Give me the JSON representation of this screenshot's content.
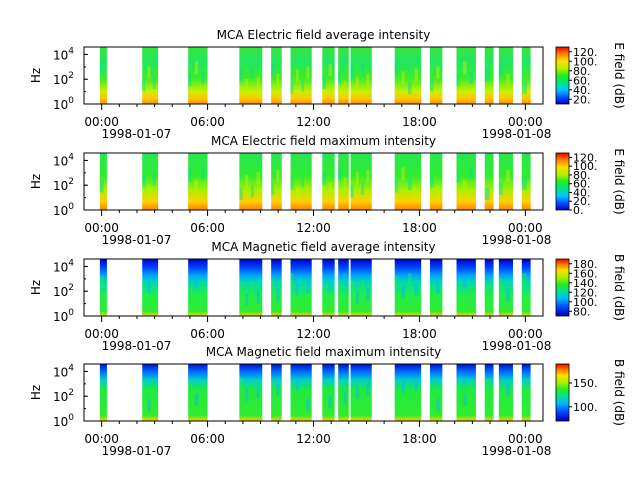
{
  "chart_data": [
    {
      "type": "heatmap",
      "title": "MCA  Electric field average intensity",
      "ylabel": "Hz",
      "colorbar_label": "E field (dB)",
      "colorbar_ticks": [
        "20.",
        "40.",
        "60.",
        "80.",
        "100.",
        "120."
      ],
      "colorbar_range": [
        10,
        130
      ],
      "y_ticks": [
        {
          "base": "10",
          "exp": "0"
        },
        {
          "base": "10",
          "exp": "2"
        },
        {
          "base": "10",
          "exp": "4"
        }
      ],
      "y_range_log10": [
        0,
        4.6
      ],
      "x_ticks": [
        "00:00",
        "06:00",
        "12:00",
        "18:00",
        "00:00"
      ],
      "x_dates": [
        "1998-01-07",
        "1998-01-08"
      ],
      "x_range_hours": [
        -1,
        25
      ],
      "palette": "spectral-low"
    },
    {
      "type": "heatmap",
      "title": "MCA  Electric field maximum intensity",
      "ylabel": "Hz",
      "colorbar_label": "E field (dB)",
      "colorbar_ticks": [
        "0.",
        "20.",
        "40.",
        "60.",
        "80.",
        "100.",
        "120."
      ],
      "colorbar_range": [
        0,
        130
      ],
      "y_ticks": [
        {
          "base": "10",
          "exp": "0"
        },
        {
          "base": "10",
          "exp": "2"
        },
        {
          "base": "10",
          "exp": "4"
        }
      ],
      "y_range_log10": [
        0,
        4.6
      ],
      "x_ticks": [
        "00:00",
        "06:00",
        "12:00",
        "18:00",
        "00:00"
      ],
      "x_dates": [
        "1998-01-07",
        "1998-01-08"
      ],
      "x_range_hours": [
        -1,
        25
      ],
      "palette": "spectral-low"
    },
    {
      "type": "heatmap",
      "title": "MCA  Magnetic field average intensity",
      "ylabel": "Hz",
      "colorbar_label": "B field (dB)",
      "colorbar_ticks": [
        "80.",
        "100.",
        "120.",
        "140.",
        "160.",
        "180."
      ],
      "colorbar_range": [
        70,
        190
      ],
      "y_ticks": [
        {
          "base": "10",
          "exp": "0"
        },
        {
          "base": "10",
          "exp": "2"
        },
        {
          "base": "10",
          "exp": "4"
        }
      ],
      "y_range_log10": [
        0,
        4.6
      ],
      "x_ticks": [
        "00:00",
        "06:00",
        "12:00",
        "18:00",
        "00:00"
      ],
      "x_dates": [
        "1998-01-07",
        "1998-01-08"
      ],
      "x_range_hours": [
        -1,
        25
      ],
      "palette": "magnetic"
    },
    {
      "type": "heatmap",
      "title": "MCA  Magnetic field maximum intensity",
      "ylabel": "Hz",
      "colorbar_label": "B field (dB)",
      "colorbar_ticks": [
        "100.",
        "150."
      ],
      "colorbar_range": [
        70,
        190
      ],
      "y_ticks": [
        {
          "base": "10",
          "exp": "0"
        },
        {
          "base": "10",
          "exp": "2"
        },
        {
          "base": "10",
          "exp": "4"
        }
      ],
      "y_range_log10": [
        0,
        4.6
      ],
      "x_ticks": [
        "00:00",
        "06:00",
        "12:00",
        "18:00",
        "00:00"
      ],
      "x_dates": [
        "1998-01-07",
        "1998-01-08"
      ],
      "x_range_hours": [
        -1,
        25
      ],
      "palette": "magnetic"
    }
  ],
  "data_segments_hours": [
    [
      -0.1,
      0.3
    ],
    [
      2.3,
      3.2
    ],
    [
      4.9,
      6.0
    ],
    [
      7.8,
      9.1
    ],
    [
      9.6,
      10.2
    ],
    [
      10.7,
      11.9
    ],
    [
      12.5,
      13.2
    ],
    [
      13.4,
      14.0
    ],
    [
      14.1,
      15.3
    ],
    [
      16.6,
      18.1
    ],
    [
      18.6,
      19.3
    ],
    [
      20.1,
      21.2
    ],
    [
      21.7,
      22.2
    ],
    [
      22.5,
      23.3
    ],
    [
      23.8,
      24.3
    ]
  ]
}
